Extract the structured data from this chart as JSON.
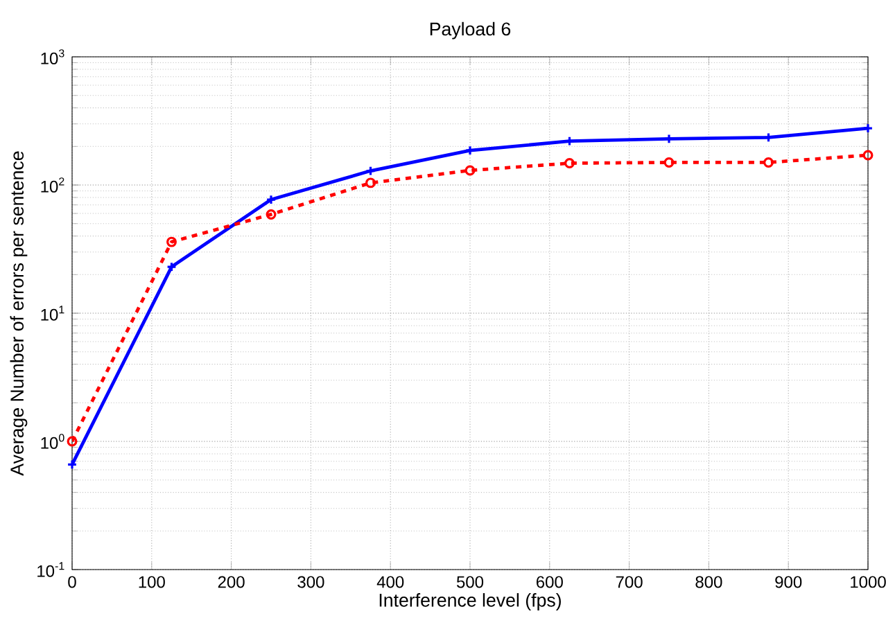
{
  "chart_data": {
    "type": "line",
    "title": "Payload 6",
    "xlabel": "Interference level (fps)",
    "ylabel": "Average Number of errors per sentence",
    "x": [
      0,
      125,
      250,
      375,
      500,
      625,
      750,
      875,
      1000
    ],
    "series": [
      {
        "color": "#0000ff",
        "marker": "cross",
        "line_style": "solid",
        "values": [
          0.66,
          23,
          77,
          129,
          186,
          220,
          229,
          235,
          277
        ]
      },
      {
        "color": "#ff0000",
        "marker": "circle",
        "line_style": "dashed",
        "values": [
          1.0,
          36,
          59,
          104,
          130,
          148,
          150,
          150,
          171
        ]
      }
    ],
    "xlim": [
      0,
      1000
    ],
    "ylim": [
      0.1,
      1000
    ],
    "xticks": [
      0,
      100,
      200,
      300,
      400,
      500,
      600,
      700,
      800,
      900,
      1000
    ],
    "yticks": [
      {
        "value": 0.1,
        "label": "10$^{-1}$"
      },
      {
        "value": 1,
        "label": "10$^{0}$"
      },
      {
        "value": 10,
        "label": "10$^{1}$"
      },
      {
        "value": 100,
        "label": "10$^{2}$"
      },
      {
        "value": 1000,
        "label": "10$^{3}$"
      }
    ],
    "log": "y",
    "grid": true
  }
}
